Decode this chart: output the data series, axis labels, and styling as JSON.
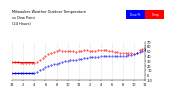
{
  "title_line1": "Milwaukee Weather Outdoor Temperature",
  "title_line2": "vs Dew Point",
  "title_line3": "(24 Hours)",
  "title_fontsize": 2.5,
  "background_color": "#ffffff",
  "temp_color": "#ff0000",
  "dew_color": "#0000ff",
  "grid_color": "#bbbbbb",
  "xlim": [
    0,
    48
  ],
  "ylim": [
    -10,
    70
  ],
  "yticks": [
    -10,
    0,
    10,
    20,
    30,
    40,
    50,
    60,
    70
  ],
  "ytick_labels": [
    "-10",
    "0",
    "10",
    "20",
    "30",
    "40",
    "50",
    "60",
    "70"
  ],
  "xtick_positions": [
    0,
    4,
    8,
    12,
    16,
    20,
    24,
    28,
    32,
    36,
    40,
    44,
    48
  ],
  "xtick_labels": [
    "12",
    "2",
    "4",
    "6",
    "8",
    "10",
    "12",
    "2",
    "4",
    "6",
    "8",
    "10",
    "12"
  ],
  "temp_x": [
    0,
    1,
    2,
    3,
    4,
    5,
    6,
    7,
    8,
    9,
    10,
    11,
    12,
    13,
    14,
    15,
    16,
    17,
    18,
    19,
    20,
    21,
    22,
    23,
    24,
    25,
    26,
    27,
    28,
    29,
    30,
    31,
    32,
    33,
    34,
    35,
    36,
    37,
    38,
    39,
    40,
    41,
    42,
    43,
    44,
    45,
    46,
    47,
    48
  ],
  "temp_y": [
    28,
    27,
    27,
    26,
    26,
    26,
    25,
    25,
    25,
    28,
    32,
    36,
    40,
    44,
    47,
    49,
    51,
    52,
    51,
    50,
    50,
    50,
    50,
    49,
    50,
    51,
    52,
    52,
    51,
    51,
    51,
    52,
    52,
    52,
    52,
    51,
    50,
    49,
    48,
    47,
    47,
    47,
    47,
    46,
    45,
    47,
    52,
    55,
    56
  ],
  "dew_x": [
    0,
    1,
    2,
    3,
    4,
    5,
    6,
    7,
    8,
    9,
    10,
    11,
    12,
    13,
    14,
    15,
    16,
    17,
    18,
    19,
    20,
    21,
    22,
    23,
    24,
    25,
    26,
    27,
    28,
    29,
    30,
    31,
    32,
    33,
    34,
    35,
    36,
    37,
    38,
    39,
    40,
    41,
    42,
    43,
    44,
    45,
    46,
    47,
    48
  ],
  "dew_y": [
    5,
    5,
    5,
    5,
    5,
    5,
    5,
    5,
    5,
    7,
    10,
    13,
    17,
    20,
    22,
    23,
    24,
    26,
    28,
    29,
    30,
    31,
    32,
    32,
    33,
    34,
    35,
    36,
    37,
    37,
    37,
    38,
    39,
    40,
    41,
    41,
    41,
    41,
    41,
    40,
    40,
    41,
    42,
    43,
    44,
    47,
    49,
    51,
    52
  ],
  "legend_temp_label": "Temp",
  "legend_dew_label": "Dew Pt",
  "tick_fontsize": 2.5
}
